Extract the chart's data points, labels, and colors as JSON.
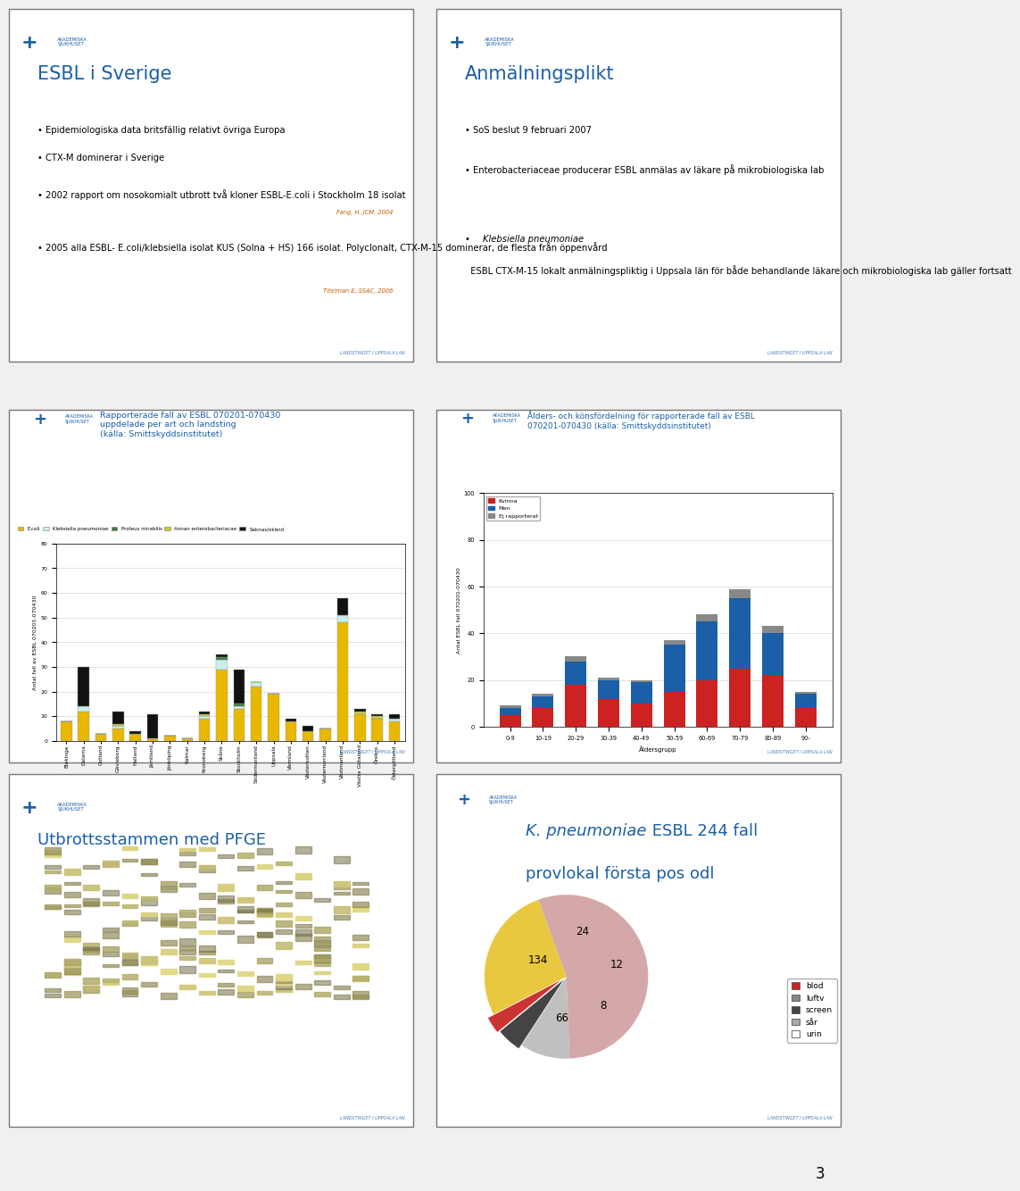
{
  "bg_color": "#f0f0f0",
  "panel_bg": "#ffffff",
  "border_color": "#555555",
  "logo_color": "#1a5fa8",
  "footer_text": "LANDSTINGET I UPPSALA LAN",
  "panel1": {
    "title": "ESBL i Sverige",
    "title_color": "#1a5fa8",
    "bullets": [
      "Epidemiologiska data britsfällig relativt övriga Europa",
      "CTX-M dominerar i Sverige",
      "2002 rapport om nosokomialt utbrott två kloner ESBL-E.coli i Stockholm 18 isolat",
      "2005 alla ESBL- E.coli/klebsiella isolat KUS (Solna + HS) 166 isolat. Polyclonalt, CTX-M-15 dominerar, de flesta från öppenvård"
    ],
    "refs": [
      "Fang, H. JCM, 2004",
      "Titelman E, SSAC, 2006"
    ]
  },
  "panel2": {
    "title": "Anmälningsplikt",
    "title_color": "#1a5fa8",
    "bullets": [
      "SoS beslut 9 februari 2007",
      "Enterobacteriaceae producerar ESBL anmälas av läkare på mikrobiologiska lab",
      "ESBL CTX-M-15 lokalt anmälningspliktig i Uppsala län för både behandlande läkare och mikrobiologiska lab gäller fortsatt"
    ],
    "italic_bullet": "Klebsiella pneumoniae"
  },
  "panel3": {
    "title": "Rapporterade fall av ESBL 070201-070430\nuppdelade per art och landsting\n(källa: Smittskyddsinstitutet)",
    "title_color": "#1a5fa8",
    "categories": [
      "Blekinge",
      "Dalarna",
      "Gotland",
      "Gävleborg",
      "Halland",
      "Jämtland",
      "Jönköping",
      "Kalmar",
      "Kronoberg",
      "Skåne",
      "Stockholm",
      "Södermanland",
      "Uppsala",
      "Värmland",
      "Västerbotten",
      "Västernorrland",
      "Västmanland",
      "Västra Götaland",
      "Örebro",
      "Östergötland"
    ],
    "ecoli": [
      8,
      12,
      3,
      5,
      3,
      1,
      2,
      1,
      9,
      29,
      13,
      22,
      19,
      8,
      4,
      5,
      48,
      11,
      9,
      8
    ],
    "klebsiella": [
      0,
      2,
      0,
      1,
      0,
      0,
      0,
      0,
      1,
      4,
      1,
      2,
      0,
      0,
      0,
      0,
      3,
      0,
      0,
      1
    ],
    "proteus": [
      0,
      0,
      0,
      0,
      0,
      0,
      0,
      0,
      0,
      1,
      1,
      0,
      0,
      0,
      0,
      0,
      0,
      0,
      0,
      0
    ],
    "annan": [
      0,
      0,
      0,
      1,
      0,
      0,
      0,
      0,
      1,
      0,
      0,
      0,
      0,
      0,
      0,
      0,
      0,
      1,
      1,
      0
    ],
    "saknas": [
      0,
      16,
      0,
      5,
      1,
      10,
      0,
      0,
      1,
      1,
      14,
      0,
      0,
      1,
      2,
      0,
      7,
      1,
      1,
      2
    ],
    "colors": [
      "#e8b800",
      "#c8eeee",
      "#3a7a3a",
      "#c8c840",
      "#111111"
    ],
    "legend": [
      "E.coli",
      "Klebsiella pneumoniae",
      "Proteus mirabilis",
      "Annan enterobacteriacae",
      "Saknas/okänd"
    ],
    "ylabel": "Antal fall av ESBL 070201-070430",
    "ylim": [
      0,
      80
    ]
  },
  "panel4": {
    "title": "Ålders- och könsfördelning för rapporterade fall av ESBL\n070201-070430 (källa: Smittskyddsinstitutet)",
    "title_color": "#1a5fa8",
    "age_groups": [
      "0-9",
      "10-19",
      "20-29",
      "30-39",
      "40-49",
      "50-59",
      "60-69",
      "70-79",
      "80-89",
      "90-"
    ],
    "kvinnor": [
      5,
      8,
      18,
      12,
      10,
      15,
      20,
      25,
      22,
      8
    ],
    "man": [
      3,
      5,
      10,
      8,
      9,
      20,
      25,
      30,
      18,
      6
    ],
    "ej": [
      1,
      1,
      2,
      1,
      1,
      2,
      3,
      4,
      3,
      1
    ],
    "colors": [
      "#cc2222",
      "#1a5fa8",
      "#888888"
    ],
    "legend": [
      "Kvinna",
      "Man",
      "Ej rapporterat"
    ],
    "ylabel": "Antal ESBL fall 070201-070430",
    "xlabel": "Åldersgrupp",
    "ylim": [
      0,
      100
    ]
  },
  "panel5": {
    "title": "Utbrottsstammen med PFGE",
    "title_color": "#1a5fa8"
  },
  "panel6": {
    "title_italic": "K. pneumoniae",
    "title_rest": " ESBL 244 fall",
    "title_line2": "provlokal första pos odl",
    "title_color": "#1a5fa8",
    "slices": [
      134,
      24,
      12,
      8,
      66
    ],
    "slice_colors": [
      "#d4a8a8",
      "#c0c0c0",
      "#444444",
      "#cc3333",
      "#e8c840"
    ],
    "slice_labels": [
      "134",
      "24",
      "12",
      "8",
      "66"
    ],
    "legend_labels": [
      "blod",
      "luftv",
      "screen",
      "sår",
      "urin"
    ],
    "legend_colors": [
      "#cc2222",
      "#888888",
      "#444444",
      "#aaaaaa",
      "#ffffff"
    ]
  },
  "page_number": "3"
}
